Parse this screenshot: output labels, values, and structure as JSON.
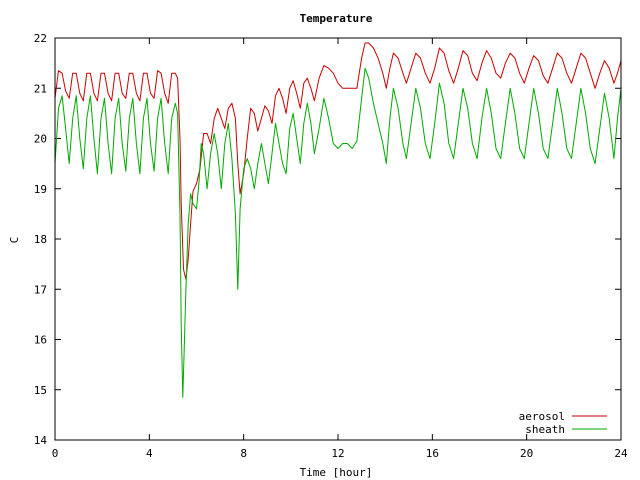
{
  "chart_data": {
    "type": "line",
    "title": "Temperature",
    "xlabel": "Time [hour]",
    "ylabel": "C",
    "xlim": [
      0,
      24
    ],
    "ylim": [
      14,
      22
    ],
    "xticks": [
      0,
      4,
      8,
      12,
      16,
      20,
      24
    ],
    "yticks": [
      14,
      15,
      16,
      17,
      18,
      19,
      20,
      21,
      22
    ],
    "legend_position": "bottom-right",
    "grid": false,
    "series": [
      {
        "name": "aerosol",
        "color": "#cc0000",
        "points": [
          [
            0.0,
            20.8
          ],
          [
            0.15,
            21.35
          ],
          [
            0.3,
            21.3
          ],
          [
            0.45,
            20.95
          ],
          [
            0.6,
            20.8
          ],
          [
            0.75,
            21.3
          ],
          [
            0.9,
            21.3
          ],
          [
            1.05,
            20.9
          ],
          [
            1.2,
            20.75
          ],
          [
            1.35,
            21.3
          ],
          [
            1.5,
            21.3
          ],
          [
            1.65,
            20.9
          ],
          [
            1.8,
            20.75
          ],
          [
            1.95,
            21.3
          ],
          [
            2.1,
            21.3
          ],
          [
            2.25,
            20.9
          ],
          [
            2.4,
            20.75
          ],
          [
            2.55,
            21.3
          ],
          [
            2.7,
            21.3
          ],
          [
            2.85,
            20.9
          ],
          [
            3.0,
            20.8
          ],
          [
            3.15,
            21.3
          ],
          [
            3.3,
            21.3
          ],
          [
            3.45,
            20.9
          ],
          [
            3.6,
            20.75
          ],
          [
            3.75,
            21.3
          ],
          [
            3.9,
            21.3
          ],
          [
            4.05,
            20.9
          ],
          [
            4.2,
            20.8
          ],
          [
            4.35,
            21.35
          ],
          [
            4.5,
            21.3
          ],
          [
            4.65,
            20.9
          ],
          [
            4.8,
            20.7
          ],
          [
            4.95,
            21.3
          ],
          [
            5.1,
            21.3
          ],
          [
            5.2,
            21.2
          ],
          [
            5.3,
            20.0
          ],
          [
            5.35,
            18.7
          ],
          [
            5.45,
            17.4
          ],
          [
            5.55,
            17.2
          ],
          [
            5.65,
            17.6
          ],
          [
            5.75,
            18.3
          ],
          [
            5.85,
            18.95
          ],
          [
            6.0,
            19.1
          ],
          [
            6.15,
            19.4
          ],
          [
            6.3,
            20.1
          ],
          [
            6.45,
            20.1
          ],
          [
            6.6,
            19.9
          ],
          [
            6.75,
            20.4
          ],
          [
            6.9,
            20.6
          ],
          [
            7.05,
            20.4
          ],
          [
            7.2,
            20.2
          ],
          [
            7.35,
            20.6
          ],
          [
            7.5,
            20.7
          ],
          [
            7.65,
            20.4
          ],
          [
            7.75,
            19.5
          ],
          [
            7.85,
            18.9
          ],
          [
            8.0,
            19.3
          ],
          [
            8.15,
            20.0
          ],
          [
            8.3,
            20.6
          ],
          [
            8.45,
            20.5
          ],
          [
            8.6,
            20.15
          ],
          [
            8.75,
            20.4
          ],
          [
            8.9,
            20.65
          ],
          [
            9.05,
            20.55
          ],
          [
            9.2,
            20.3
          ],
          [
            9.35,
            20.85
          ],
          [
            9.5,
            21.0
          ],
          [
            9.65,
            20.8
          ],
          [
            9.8,
            20.5
          ],
          [
            9.95,
            21.0
          ],
          [
            10.1,
            21.15
          ],
          [
            10.25,
            20.9
          ],
          [
            10.4,
            20.6
          ],
          [
            10.55,
            21.1
          ],
          [
            10.7,
            21.2
          ],
          [
            10.85,
            21.0
          ],
          [
            11.0,
            20.75
          ],
          [
            11.2,
            21.2
          ],
          [
            11.4,
            21.45
          ],
          [
            11.6,
            21.4
          ],
          [
            11.8,
            21.3
          ],
          [
            12.0,
            21.1
          ],
          [
            12.2,
            21.0
          ],
          [
            12.4,
            21.0
          ],
          [
            12.6,
            21.0
          ],
          [
            12.8,
            21.0
          ],
          [
            13.0,
            21.6
          ],
          [
            13.15,
            21.9
          ],
          [
            13.3,
            21.9
          ],
          [
            13.5,
            21.8
          ],
          [
            13.7,
            21.6
          ],
          [
            13.9,
            21.3
          ],
          [
            14.05,
            21.0
          ],
          [
            14.2,
            21.4
          ],
          [
            14.35,
            21.7
          ],
          [
            14.55,
            21.6
          ],
          [
            14.75,
            21.3
          ],
          [
            14.9,
            21.1
          ],
          [
            15.1,
            21.4
          ],
          [
            15.3,
            21.7
          ],
          [
            15.5,
            21.6
          ],
          [
            15.7,
            21.3
          ],
          [
            15.9,
            21.1
          ],
          [
            16.1,
            21.4
          ],
          [
            16.3,
            21.8
          ],
          [
            16.5,
            21.7
          ],
          [
            16.7,
            21.35
          ],
          [
            16.9,
            21.1
          ],
          [
            17.1,
            21.4
          ],
          [
            17.3,
            21.75
          ],
          [
            17.5,
            21.65
          ],
          [
            17.7,
            21.3
          ],
          [
            17.9,
            21.15
          ],
          [
            18.1,
            21.5
          ],
          [
            18.3,
            21.75
          ],
          [
            18.5,
            21.6
          ],
          [
            18.7,
            21.3
          ],
          [
            18.9,
            21.2
          ],
          [
            19.1,
            21.5
          ],
          [
            19.3,
            21.7
          ],
          [
            19.5,
            21.6
          ],
          [
            19.7,
            21.3
          ],
          [
            19.9,
            21.1
          ],
          [
            20.1,
            21.4
          ],
          [
            20.3,
            21.65
          ],
          [
            20.5,
            21.55
          ],
          [
            20.7,
            21.25
          ],
          [
            20.9,
            21.1
          ],
          [
            21.1,
            21.4
          ],
          [
            21.3,
            21.7
          ],
          [
            21.5,
            21.6
          ],
          [
            21.7,
            21.3
          ],
          [
            21.9,
            21.1
          ],
          [
            22.1,
            21.4
          ],
          [
            22.3,
            21.7
          ],
          [
            22.5,
            21.6
          ],
          [
            22.7,
            21.3
          ],
          [
            22.9,
            21.0
          ],
          [
            23.1,
            21.3
          ],
          [
            23.3,
            21.55
          ],
          [
            23.5,
            21.4
          ],
          [
            23.7,
            21.1
          ],
          [
            23.85,
            21.3
          ],
          [
            24.0,
            21.55
          ]
        ]
      },
      {
        "name": "sheath",
        "color": "#00aa00",
        "points": [
          [
            0.0,
            19.5
          ],
          [
            0.15,
            20.6
          ],
          [
            0.3,
            20.85
          ],
          [
            0.45,
            20.2
          ],
          [
            0.6,
            19.5
          ],
          [
            0.75,
            20.4
          ],
          [
            0.9,
            20.85
          ],
          [
            1.05,
            20.0
          ],
          [
            1.2,
            19.4
          ],
          [
            1.35,
            20.4
          ],
          [
            1.5,
            20.85
          ],
          [
            1.65,
            20.0
          ],
          [
            1.8,
            19.3
          ],
          [
            1.95,
            20.4
          ],
          [
            2.1,
            20.8
          ],
          [
            2.25,
            19.9
          ],
          [
            2.4,
            19.3
          ],
          [
            2.55,
            20.4
          ],
          [
            2.7,
            20.8
          ],
          [
            2.85,
            19.9
          ],
          [
            3.0,
            19.35
          ],
          [
            3.15,
            20.4
          ],
          [
            3.3,
            20.8
          ],
          [
            3.45,
            19.9
          ],
          [
            3.6,
            19.3
          ],
          [
            3.75,
            20.4
          ],
          [
            3.9,
            20.8
          ],
          [
            4.05,
            19.9
          ],
          [
            4.2,
            19.35
          ],
          [
            4.35,
            20.4
          ],
          [
            4.5,
            20.8
          ],
          [
            4.65,
            19.9
          ],
          [
            4.8,
            19.3
          ],
          [
            4.95,
            20.4
          ],
          [
            5.1,
            20.7
          ],
          [
            5.2,
            20.5
          ],
          [
            5.3,
            18.5
          ],
          [
            5.35,
            16.3
          ],
          [
            5.42,
            14.85
          ],
          [
            5.48,
            15.8
          ],
          [
            5.55,
            17.0
          ],
          [
            5.65,
            18.3
          ],
          [
            5.75,
            18.9
          ],
          [
            5.85,
            18.7
          ],
          [
            6.0,
            18.6
          ],
          [
            6.1,
            19.1
          ],
          [
            6.2,
            19.9
          ],
          [
            6.3,
            19.7
          ],
          [
            6.45,
            19.0
          ],
          [
            6.6,
            19.7
          ],
          [
            6.75,
            20.1
          ],
          [
            6.9,
            19.7
          ],
          [
            7.05,
            19.0
          ],
          [
            7.2,
            19.9
          ],
          [
            7.35,
            20.3
          ],
          [
            7.5,
            19.6
          ],
          [
            7.65,
            18.5
          ],
          [
            7.75,
            17.0
          ],
          [
            7.85,
            18.6
          ],
          [
            8.0,
            19.4
          ],
          [
            8.15,
            19.6
          ],
          [
            8.3,
            19.4
          ],
          [
            8.45,
            19.0
          ],
          [
            8.6,
            19.5
          ],
          [
            8.75,
            19.9
          ],
          [
            8.9,
            19.5
          ],
          [
            9.05,
            19.1
          ],
          [
            9.2,
            19.7
          ],
          [
            9.35,
            20.3
          ],
          [
            9.5,
            19.9
          ],
          [
            9.65,
            19.5
          ],
          [
            9.8,
            19.3
          ],
          [
            9.95,
            20.2
          ],
          [
            10.1,
            20.5
          ],
          [
            10.25,
            20.0
          ],
          [
            10.4,
            19.5
          ],
          [
            10.55,
            20.3
          ],
          [
            10.7,
            20.7
          ],
          [
            10.85,
            20.3
          ],
          [
            11.0,
            19.7
          ],
          [
            11.2,
            20.2
          ],
          [
            11.4,
            20.8
          ],
          [
            11.6,
            20.4
          ],
          [
            11.8,
            19.9
          ],
          [
            12.0,
            19.8
          ],
          [
            12.2,
            19.9
          ],
          [
            12.4,
            19.9
          ],
          [
            12.6,
            19.8
          ],
          [
            12.8,
            19.95
          ],
          [
            13.0,
            20.8
          ],
          [
            13.15,
            21.4
          ],
          [
            13.3,
            21.2
          ],
          [
            13.5,
            20.7
          ],
          [
            13.7,
            20.3
          ],
          [
            13.9,
            19.9
          ],
          [
            14.05,
            19.5
          ],
          [
            14.2,
            20.4
          ],
          [
            14.35,
            21.0
          ],
          [
            14.55,
            20.6
          ],
          [
            14.75,
            19.9
          ],
          [
            14.9,
            19.6
          ],
          [
            15.1,
            20.3
          ],
          [
            15.3,
            21.0
          ],
          [
            15.5,
            20.6
          ],
          [
            15.7,
            19.9
          ],
          [
            15.9,
            19.6
          ],
          [
            16.1,
            20.3
          ],
          [
            16.3,
            21.1
          ],
          [
            16.5,
            20.7
          ],
          [
            16.7,
            19.9
          ],
          [
            16.9,
            19.6
          ],
          [
            17.1,
            20.3
          ],
          [
            17.3,
            21.0
          ],
          [
            17.5,
            20.6
          ],
          [
            17.7,
            19.9
          ],
          [
            17.9,
            19.6
          ],
          [
            18.1,
            20.4
          ],
          [
            18.3,
            21.0
          ],
          [
            18.5,
            20.5
          ],
          [
            18.7,
            19.8
          ],
          [
            18.9,
            19.6
          ],
          [
            19.1,
            20.3
          ],
          [
            19.3,
            21.0
          ],
          [
            19.5,
            20.5
          ],
          [
            19.7,
            19.8
          ],
          [
            19.9,
            19.6
          ],
          [
            20.1,
            20.3
          ],
          [
            20.3,
            21.0
          ],
          [
            20.5,
            20.5
          ],
          [
            20.7,
            19.8
          ],
          [
            20.9,
            19.6
          ],
          [
            21.1,
            20.3
          ],
          [
            21.3,
            21.0
          ],
          [
            21.5,
            20.5
          ],
          [
            21.7,
            19.8
          ],
          [
            21.9,
            19.6
          ],
          [
            22.1,
            20.3
          ],
          [
            22.3,
            21.0
          ],
          [
            22.5,
            20.5
          ],
          [
            22.7,
            19.8
          ],
          [
            22.9,
            19.5
          ],
          [
            23.1,
            20.2
          ],
          [
            23.3,
            20.9
          ],
          [
            23.5,
            20.4
          ],
          [
            23.7,
            19.6
          ],
          [
            23.85,
            20.4
          ],
          [
            24.0,
            21.0
          ]
        ]
      }
    ]
  }
}
